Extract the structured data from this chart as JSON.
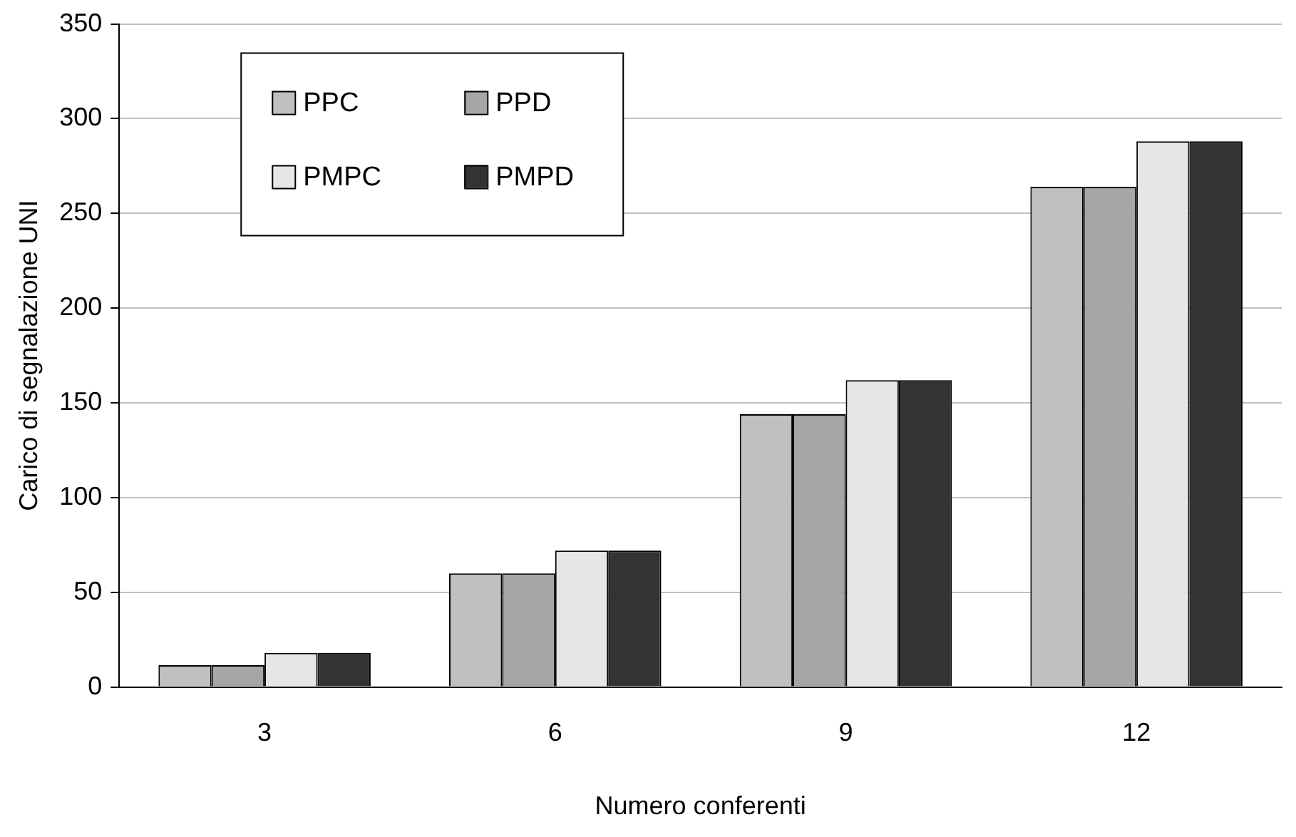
{
  "chart_data": {
    "type": "bar",
    "xlabel": "Numero conferenti",
    "ylabel": "Carico di segnalazione UNI",
    "categories": [
      "3",
      "6",
      "9",
      "12"
    ],
    "series": [
      {
        "name": "PPC",
        "color": "#c0c0c0",
        "values": [
          11.5,
          60,
          144,
          264
        ]
      },
      {
        "name": "PPD",
        "color": "#a6a6a6",
        "values": [
          11.5,
          60,
          144,
          264
        ]
      },
      {
        "name": "PMPC",
        "color": "#e6e6e6",
        "values": [
          18,
          72,
          162,
          288
        ]
      },
      {
        "name": "PMPD",
        "color": "#333333",
        "values": [
          18,
          72,
          162,
          288
        ]
      }
    ],
    "ylim": [
      0,
      350
    ],
    "yticks": [
      0,
      50,
      100,
      150,
      200,
      250,
      300,
      350
    ],
    "grid": "y",
    "legend": "top left"
  }
}
